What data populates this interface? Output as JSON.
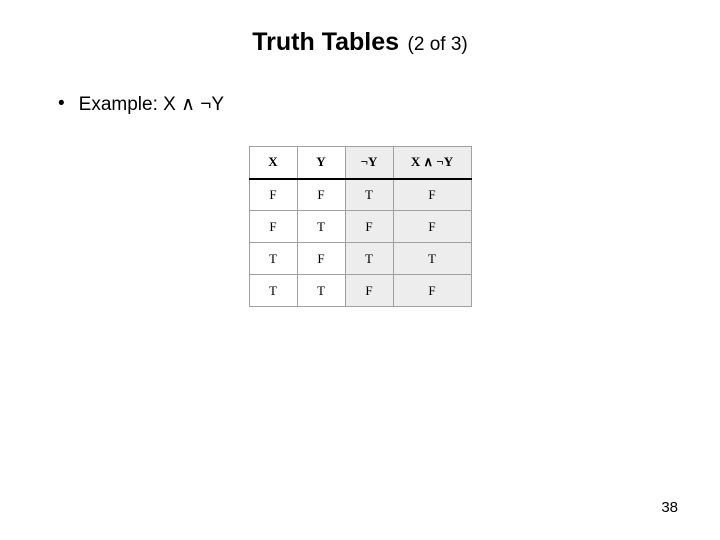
{
  "title": {
    "main": "Truth Tables",
    "sub": "(2 of 3)"
  },
  "bullet": {
    "dot": "•",
    "text": "Example: X ∧ ¬Y"
  },
  "table": {
    "columns": [
      "X",
      "Y",
      "¬Y",
      "X ∧ ¬Y"
    ],
    "col_widths": [
      "col-narrow",
      "col-narrow",
      "col-narrow",
      "col-wide"
    ],
    "shaded_cols": [
      false,
      false,
      true,
      true
    ],
    "rows": [
      [
        "F",
        "F",
        "T",
        "F"
      ],
      [
        "F",
        "T",
        "F",
        "F"
      ],
      [
        "T",
        "F",
        "T",
        "T"
      ],
      [
        "T",
        "T",
        "F",
        "F"
      ]
    ]
  },
  "page_number": "38",
  "colors": {
    "background": "#ffffff",
    "text": "#000000",
    "border": "#a0a0a0",
    "header_rule": "#000000",
    "shaded": "#ededed"
  }
}
